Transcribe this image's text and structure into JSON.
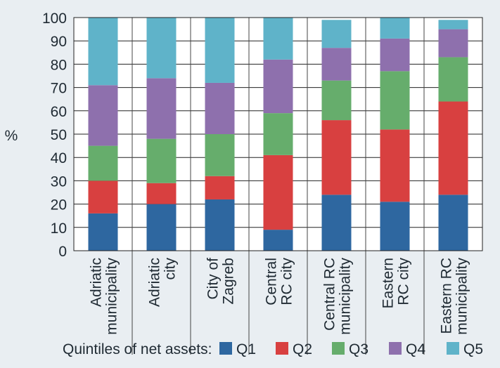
{
  "chart_data": {
    "type": "bar",
    "stacked": true,
    "ylabel": "%",
    "ylim": [
      0,
      100
    ],
    "yticks": [
      0,
      10,
      20,
      30,
      40,
      50,
      60,
      70,
      80,
      90,
      100
    ],
    "grid": true,
    "legend_title": "Quintiles of net assets:",
    "legend_position": "bottom",
    "categories": [
      [
        "Adriatic",
        "municipality"
      ],
      [
        "Adriatic",
        "city"
      ],
      [
        "City of",
        "Zagreb"
      ],
      [
        "Central",
        "RC city"
      ],
      [
        "Central RC",
        "municipality"
      ],
      [
        "Eastern",
        "RC city"
      ],
      [
        "Eastern RC",
        "municipality"
      ]
    ],
    "series": [
      {
        "name": "Q1",
        "color": "#2e67a0",
        "values": [
          16,
          20,
          22,
          9,
          24,
          21,
          24
        ]
      },
      {
        "name": "Q2",
        "color": "#d84040",
        "values": [
          14,
          9,
          10,
          32,
          32,
          31,
          40
        ]
      },
      {
        "name": "Q3",
        "color": "#66ad6c",
        "values": [
          15,
          19,
          18,
          18,
          17,
          25,
          19
        ]
      },
      {
        "name": "Q4",
        "color": "#8e70ad",
        "values": [
          26,
          26,
          22,
          23,
          14,
          14,
          12
        ]
      },
      {
        "name": "Q5",
        "color": "#5fb3c9",
        "values": [
          29,
          26,
          28,
          18,
          12,
          9,
          4
        ]
      }
    ]
  }
}
